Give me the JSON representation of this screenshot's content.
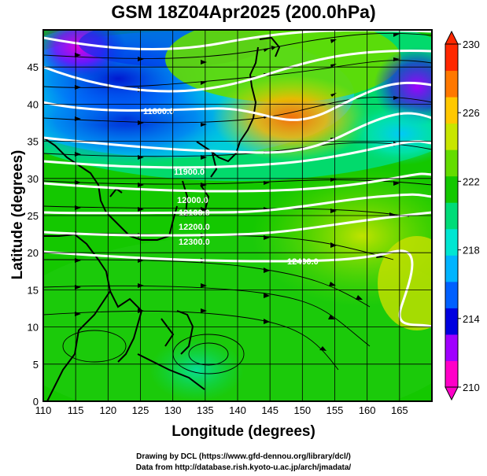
{
  "title": "GSM 18Z04Apr2025 (200.0hPa)",
  "xlabel": "Longitude (degrees)",
  "ylabel": "Latitude  (degrees)",
  "credits": [
    "Drawing by DCL (https://www.gfd-dennou.org/library/dcl/)",
    "Data from http://database.rish.kyoto-u.ac.jp/arch/jmadata/"
  ],
  "chart_data": {
    "type": "heatmap",
    "title": "GSM 18Z04Apr2025 (200.0hPa)",
    "xlabel": "Longitude (degrees)",
    "ylabel": "Latitude  (degrees)",
    "xlim": [
      110,
      170
    ],
    "ylim": [
      0,
      50
    ],
    "xticks": [
      110,
      115,
      120,
      125,
      130,
      135,
      140,
      145,
      150,
      155,
      160,
      165
    ],
    "yticks": [
      0,
      5,
      10,
      15,
      20,
      25,
      30,
      35,
      40,
      45
    ],
    "grid": true,
    "colorbar": {
      "range": [
        210,
        230
      ],
      "ticks": [
        210,
        214,
        218,
        222,
        226,
        230
      ],
      "colors": [
        "#ff00c8",
        "#a000ff",
        "#0000e0",
        "#0060ff",
        "#00b4ff",
        "#00e6d2",
        "#00dc78",
        "#14c800",
        "#64dc00",
        "#c8e600",
        "#ffc800",
        "#ff7800",
        "#ff2800"
      ]
    },
    "contour_labels": [
      "11800.0",
      "11900.0",
      "12000.0",
      "12100.0",
      "12200.0",
      "12300.0",
      "12400.0"
    ],
    "overlays": [
      "coastlines",
      "wind streamlines",
      "geopotential height contours"
    ]
  }
}
